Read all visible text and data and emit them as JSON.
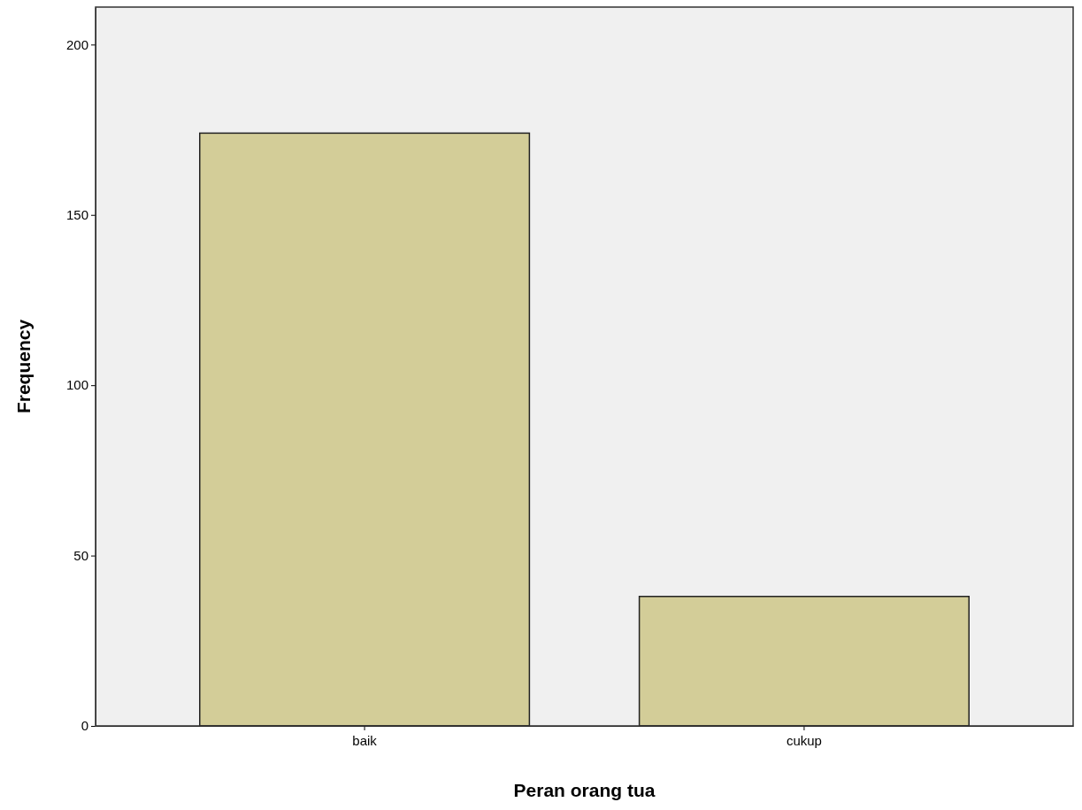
{
  "chart_data": {
    "type": "bar",
    "xlabel": "Peran orang tua",
    "ylabel": "Frequency",
    "categories": [
      "baik",
      "cukup"
    ],
    "values": [
      174,
      38
    ],
    "color": "#d3cd98",
    "ylim": [
      0,
      211
    ],
    "yticks": [
      0,
      50,
      100,
      150,
      200
    ],
    "grid": false
  }
}
